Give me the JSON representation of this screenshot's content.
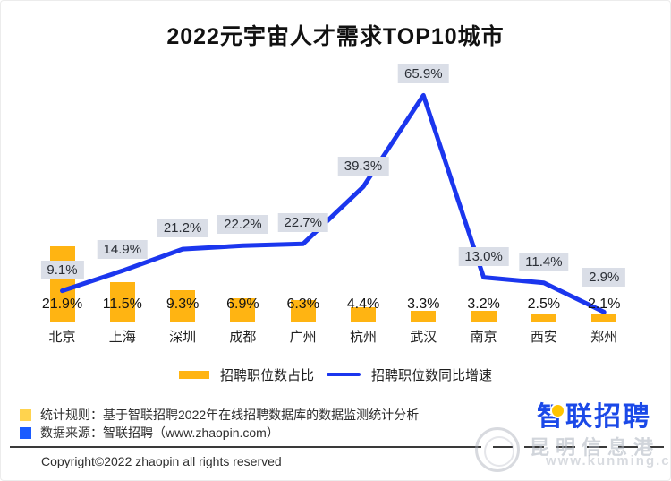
{
  "title": "2022元宇宙人才需求TOP10城市",
  "chart_data": {
    "type": "combo-bar-line",
    "title": "2022元宇宙人才需求TOP10城市",
    "categories": [
      "北京",
      "上海",
      "深圳",
      "成都",
      "广州",
      "杭州",
      "武汉",
      "南京",
      "西安",
      "郑州"
    ],
    "series": [
      {
        "name": "招聘职位数占比",
        "type": "bar",
        "unit": "%",
        "color": "#FFB412",
        "values": [
          21.9,
          11.5,
          9.3,
          6.9,
          6.3,
          4.4,
          3.3,
          3.2,
          2.5,
          2.1
        ]
      },
      {
        "name": "招聘职位数同比增速",
        "type": "line",
        "unit": "%",
        "color": "#1B36EE",
        "values": [
          9.1,
          14.9,
          21.2,
          22.2,
          22.7,
          39.3,
          65.9,
          13.0,
          11.4,
          2.9
        ]
      }
    ],
    "value_label_format": "0.0%",
    "line_label_bg": "#DADEE7",
    "grid": false,
    "axes_hidden": true,
    "legend_position": "bottom",
    "ylim": [
      0,
      93
    ]
  },
  "legend": {
    "bar_label": "招聘职位数占比",
    "line_label": "招聘职位数同比增速"
  },
  "footer": {
    "stat_rule": "统计规则：基于智联招聘2022年在线招聘数据库的数据监测统计分析",
    "stat_rule_swatch_color": "#FFD34E",
    "data_source": "数据来源：智联招聘（www.zhaopin.com）",
    "data_source_swatch_color": "#1B5BFF",
    "copyright": "Copyright©2022 zhaopin all rights reserved"
  },
  "logo": {
    "text": "智联招聘",
    "color": "#1B49E8",
    "accent_color": "#FFC400"
  },
  "watermark": {
    "line1": "昆明信息港",
    "line2": "www.kunming.cn"
  }
}
